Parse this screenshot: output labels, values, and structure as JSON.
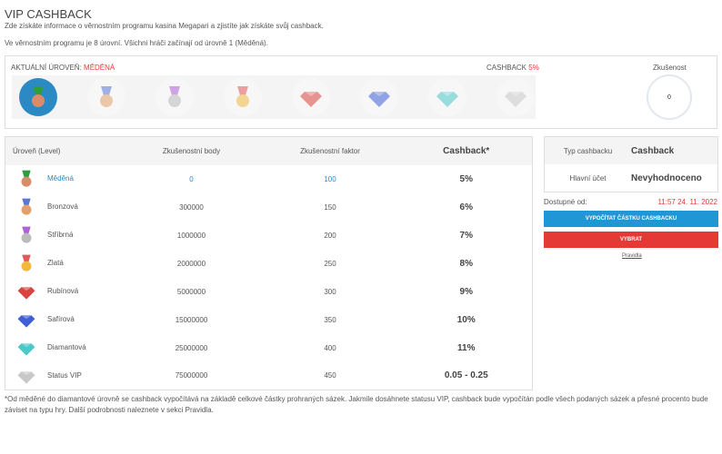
{
  "title": "VIP CASHBACK",
  "intro": "Zde získáte informace o věrnostním programu kasina Megapari a zjistíte jak získáte svůj cashback.",
  "levels_info": "Ve věrnostním programu je 8 úrovní. Všichni hráči začínají od úrovně 1 (Měděná).",
  "current_level_label": "AKTUÁLNÍ ÚROVEŇ:",
  "current_level": "MĚDĚNÁ",
  "cashback_label": "CASHBACK",
  "cashback_value": "5%",
  "experience_label": "Zkušenost",
  "experience_value": "0",
  "table": {
    "headers": [
      "Úroveň (Level)",
      "Zkušenostní body",
      "Zkušenostní faktor",
      "Cashback*"
    ],
    "rows": [
      {
        "name": "Měděná",
        "points": "0",
        "factor": "100",
        "cashback": "5%",
        "icon": "medal-copper"
      },
      {
        "name": "Bronzová",
        "points": "300000",
        "factor": "150",
        "cashback": "6%",
        "icon": "medal-bronze"
      },
      {
        "name": "Stříbrná",
        "points": "1000000",
        "factor": "200",
        "cashback": "7%",
        "icon": "medal-silver"
      },
      {
        "name": "Zlatá",
        "points": "2000000",
        "factor": "250",
        "cashback": "8%",
        "icon": "medal-gold"
      },
      {
        "name": "Rubínová",
        "points": "5000000",
        "factor": "300",
        "cashback": "9%",
        "icon": "gem-ruby"
      },
      {
        "name": "Safírová",
        "points": "15000000",
        "factor": "350",
        "cashback": "10%",
        "icon": "gem-sapphire"
      },
      {
        "name": "Diamantová",
        "points": "25000000",
        "factor": "400",
        "cashback": "11%",
        "icon": "gem-diamond"
      },
      {
        "name": "Status VIP",
        "points": "75000000",
        "factor": "450",
        "cashback": "0.05 - 0.25",
        "icon": "gem-vip"
      }
    ]
  },
  "panel": {
    "type_label": "Typ cashbacku",
    "type_value": "Cashback",
    "account_label": "Hlavní účet",
    "account_value": "Nevyhodnoceno",
    "available_label": "Dostupné od:",
    "available_value": "11:57 24. 11. 2022",
    "calc_button": "VYPOČÍTAT ČÁSTKU CASHBACKU",
    "withdraw_button": "VYBRAT",
    "rules_link": "Pravidla"
  },
  "footnote": "*Od měděné do diamantové úrovně se cashback vypočítává na základě celkové částky prohraných sázek. Jakmile dosáhnete statusu VIP, cashback bude vypočítán podle všech podaných sázek a přesné procento bude záviset na typu hry. Další podrobnosti naleznete v sekci Pravidla.",
  "colors": {
    "accent": "#2b8ac4",
    "red": "#e53935"
  }
}
